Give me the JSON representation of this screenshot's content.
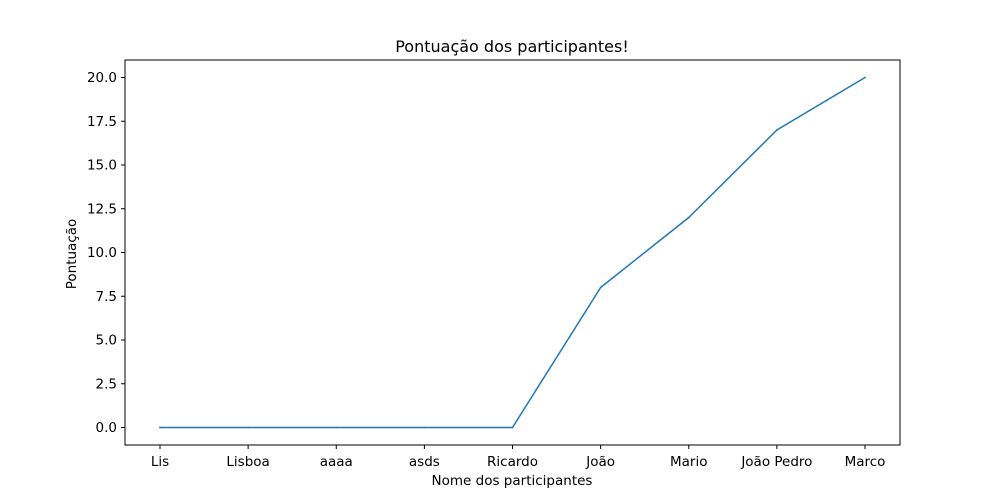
{
  "chart_data": {
    "type": "line",
    "title": "Pontuação dos participantes!",
    "xlabel": "Nome dos participantes",
    "ylabel": "Pontuação",
    "categories": [
      "Lis",
      "Lisboa",
      "aaaa",
      "asds",
      "Ricardo",
      "João",
      "Mario",
      "João Pedro",
      "Marco"
    ],
    "series": [
      {
        "values": [
          0,
          0,
          0,
          0,
          0,
          8,
          12,
          17,
          20
        ],
        "color": "#1f77b4"
      }
    ],
    "ylim": [
      -1,
      21
    ],
    "yticks": [
      "0.0",
      "2.5",
      "5.0",
      "7.5",
      "10.0",
      "12.5",
      "15.0",
      "17.5",
      "20.0"
    ],
    "grid": false,
    "legend": "none"
  }
}
